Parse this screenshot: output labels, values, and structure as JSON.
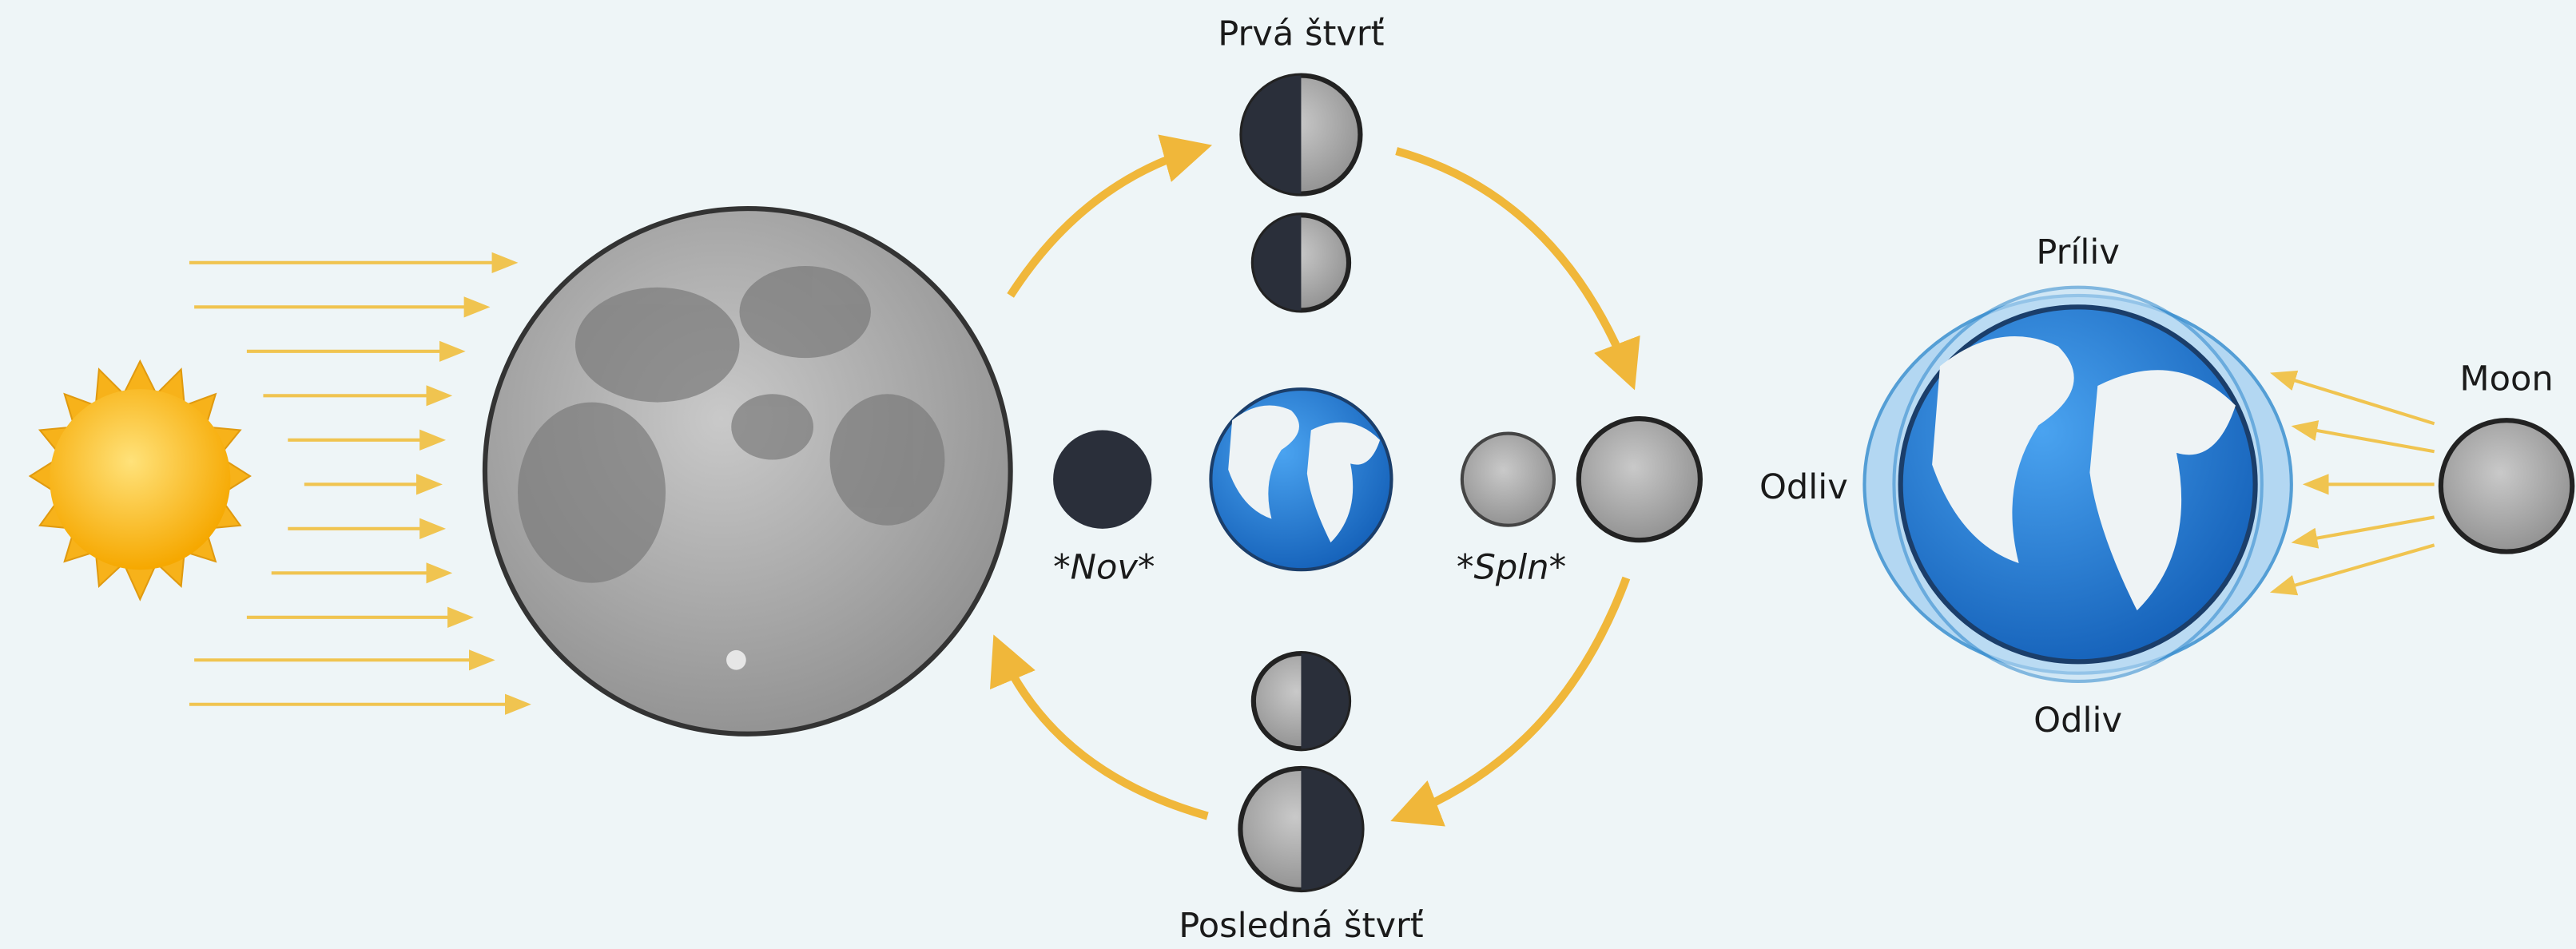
{
  "phases": {
    "first_quarter": "Prvá štvrť",
    "new_moon": "*Nov*",
    "full_moon": "*Spln*",
    "last_quarter": "Posledná štvrť"
  },
  "tides": {
    "high_tide": "Príliv",
    "low_tide_left": "Odliv",
    "low_tide_bottom": "Odliv",
    "moon": "Moon"
  }
}
